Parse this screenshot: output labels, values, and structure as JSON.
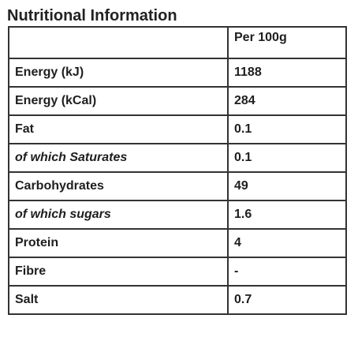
{
  "title": "Nutritional Information",
  "table": {
    "header": {
      "label": "",
      "value": "Per 100g"
    },
    "rows": [
      {
        "label": "Energy (kJ)",
        "value": "1188",
        "italic": false
      },
      {
        "label": "Energy (kCal)",
        "value": "284",
        "italic": false
      },
      {
        "label": "Fat",
        "value": "0.1",
        "italic": false
      },
      {
        "label": "of which Saturates",
        "value": "0.1",
        "italic": true
      },
      {
        "label": "Carbohydrates",
        "value": "49",
        "italic": false
      },
      {
        "label": "of which sugars",
        "value": "1.6",
        "italic": true
      },
      {
        "label": "Protein",
        "value": "4",
        "italic": false
      },
      {
        "label": "Fibre",
        "value": "-",
        "italic": false
      },
      {
        "label": "Salt",
        "value": "0.7",
        "italic": false
      }
    ]
  }
}
